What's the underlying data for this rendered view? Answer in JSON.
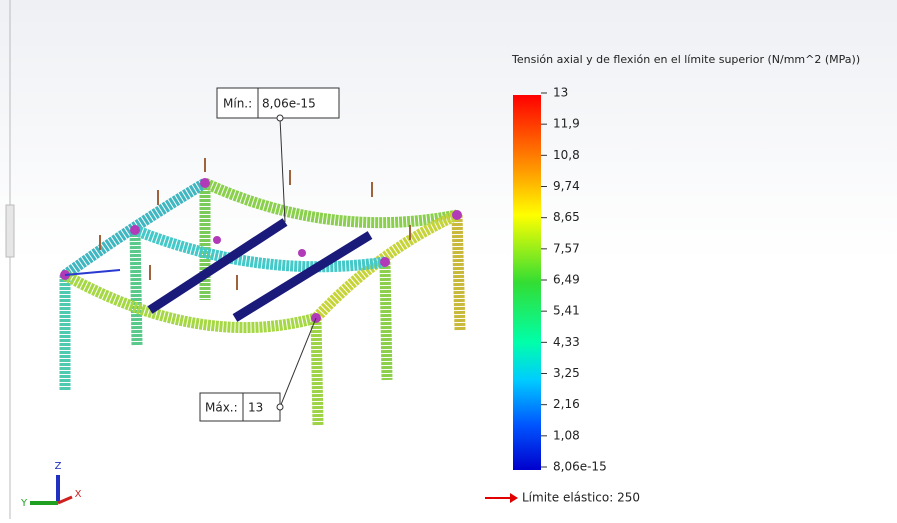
{
  "legend": {
    "title": "Tensión axial y de flexión en el límite superior (N/mm^2 (MPa))",
    "ticks": [
      "13",
      "11,9",
      "10,8",
      "9,74",
      "8,65",
      "7,57",
      "6,49",
      "5,41",
      "4,33",
      "3,25",
      "2,16",
      "1,08",
      "8,06e-15"
    ]
  },
  "annotations": {
    "min": {
      "label": "Mín.:",
      "value": "8,06e-15"
    },
    "max": {
      "label": "Máx.:",
      "value": "13"
    }
  },
  "yield_limit": "Límite elástico: 250",
  "triad": {
    "x": "X",
    "y": "Y",
    "z": "Z"
  }
}
